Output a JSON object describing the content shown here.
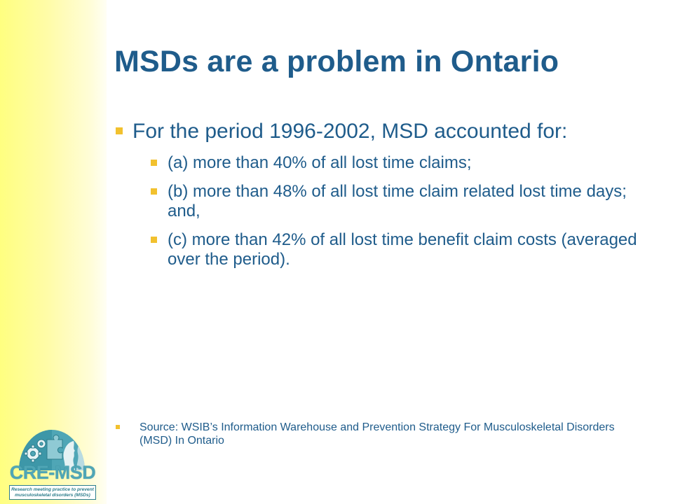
{
  "slide": {
    "title": "MSDs are a problem in Ontario",
    "main_bullet": "For the period 1996-2002, MSD accounted for:",
    "sub_bullets": [
      "(a) more than 40% of all lost time claims;",
      "(b) more than 48% of all lost time claim related lost time days; and,",
      "(c) more than 42% of all lost time benefit claim costs (averaged over the period)."
    ],
    "source": "Source: WSIB’s Information Warehouse and Prevention Strategy For Musculoskeletal Disorders (MSD) In Ontario"
  },
  "logo": {
    "name": "CRE-MSD",
    "tagline": "Research meeting practice to prevent musculoskeletal disorders (MSDs)"
  },
  "colors": {
    "title": "#1f5c8b",
    "bullet": "#f2c12e",
    "side_band": "#ffff80",
    "logo_teal": "#4fa6b6"
  }
}
